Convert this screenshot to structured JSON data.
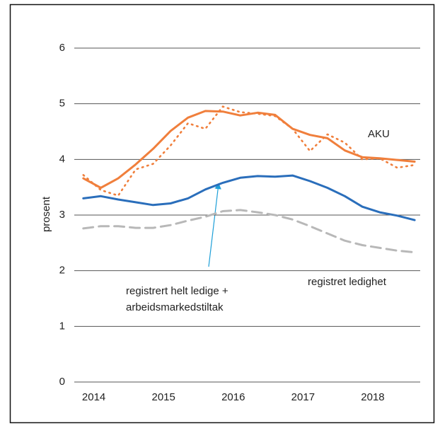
{
  "chart_data": {
    "type": "line",
    "ylabel": "prosent",
    "x": [
      2013.85,
      2014.1,
      2014.35,
      2014.6,
      2014.85,
      2015.1,
      2015.35,
      2015.6,
      2015.85,
      2016.1,
      2016.35,
      2016.6,
      2016.85,
      2017.1,
      2017.35,
      2017.6,
      2017.85,
      2018.1,
      2018.35,
      2018.6
    ],
    "series": [
      {
        "color": "#f07f3c",
        "style": "dotted",
        "values": [
          3.72,
          3.45,
          3.35,
          3.82,
          3.92,
          4.25,
          4.65,
          4.55,
          4.95,
          4.85,
          4.82,
          4.78,
          4.55,
          4.15,
          4.45,
          4.3,
          4.0,
          4.02,
          3.85,
          3.9
        ]
      },
      {
        "color": "#f07f3c",
        "style": "solid",
        "values": [
          3.66,
          3.49,
          3.66,
          3.91,
          4.19,
          4.51,
          4.75,
          4.87,
          4.86,
          4.79,
          4.84,
          4.8,
          4.55,
          4.44,
          4.38,
          4.16,
          4.04,
          4.02,
          3.99,
          3.96
        ]
      },
      {
        "color": "#2a6ebb",
        "style": "solid",
        "values": [
          3.3,
          3.34,
          3.28,
          3.23,
          3.18,
          3.21,
          3.3,
          3.46,
          3.58,
          3.67,
          3.7,
          3.69,
          3.71,
          3.61,
          3.49,
          3.34,
          3.15,
          3.05,
          2.99,
          2.91
        ]
      },
      {
        "color": "#b8b8b8",
        "style": "dashed",
        "values": [
          2.76,
          2.8,
          2.8,
          2.77,
          2.77,
          2.82,
          2.9,
          2.97,
          3.07,
          3.09,
          3.05,
          3.0,
          2.92,
          2.8,
          2.67,
          2.54,
          2.46,
          2.41,
          2.36,
          2.33
        ]
      }
    ],
    "annotations": [
      "AKU",
      "registrert helt ledige +",
      "arbeidsmarkedstiltak",
      "registret ledighet"
    ],
    "xlim": [
      2013.72,
      2018.68
    ],
    "xticks": [
      2014,
      2015,
      2016,
      2017,
      2018
    ],
    "ylim": [
      0,
      6
    ],
    "yticks": [
      0,
      1,
      2,
      3,
      4,
      5,
      6
    ],
    "grid": true
  }
}
